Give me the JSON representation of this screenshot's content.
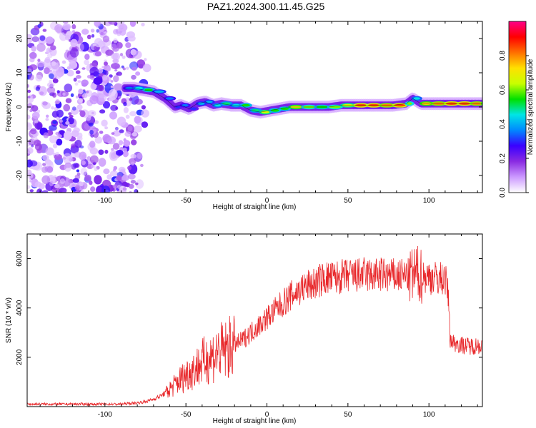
{
  "figure": {
    "title": "PAZ1.2024.300.11.45.G25"
  },
  "chart_data": [
    {
      "type": "heatmap",
      "xlabel": "Height of straight line (km)",
      "ylabel": "Frequency (Hz)",
      "xlim": [
        -148,
        133
      ],
      "ylim": [
        -25,
        25
      ],
      "xticks": [
        -100,
        -50,
        0,
        50,
        100
      ],
      "yticks": [
        -20,
        -10,
        0,
        10,
        20
      ],
      "grid": false,
      "colorbar": {
        "label": "Normalized spectral amplitude",
        "range": [
          0,
          1
        ],
        "ticks": [
          0.0,
          0.2,
          0.4,
          0.6,
          0.8
        ],
        "colormap": [
          "#ffffff",
          "#cc99ff",
          "#8a2be2",
          "#3a00ff",
          "#0088ff",
          "#00e5e5",
          "#00e000",
          "#c8ff00",
          "#ffe000",
          "#ff7000",
          "#ff0000",
          "#ff0088"
        ]
      },
      "noise_region_x": [
        -148,
        -75
      ],
      "ridge": [
        {
          "x": -88,
          "f": 5.5,
          "a": 0.35
        },
        {
          "x": -82,
          "f": 5.5,
          "a": 0.45
        },
        {
          "x": -76,
          "f": 5,
          "a": 0.55
        },
        {
          "x": -70,
          "f": 4.5,
          "a": 0.4
        },
        {
          "x": -63,
          "f": 2.5,
          "a": 0.35
        },
        {
          "x": -57,
          "f": 0,
          "a": 0.3
        },
        {
          "x": -53,
          "f": 0.5,
          "a": 0.35
        },
        {
          "x": -48,
          "f": -0.5,
          "a": 0.3
        },
        {
          "x": -43,
          "f": 1,
          "a": 0.4
        },
        {
          "x": -38,
          "f": 1.5,
          "a": 0.4
        },
        {
          "x": -33,
          "f": 0.5,
          "a": 0.45
        },
        {
          "x": -28,
          "f": 1,
          "a": 0.5
        },
        {
          "x": -22,
          "f": 0.5,
          "a": 0.45
        },
        {
          "x": -16,
          "f": 0.5,
          "a": 0.55
        },
        {
          "x": -10,
          "f": -1,
          "a": 0.5
        },
        {
          "x": -4,
          "f": -1.5,
          "a": 0.65
        },
        {
          "x": 2,
          "f": -1,
          "a": 0.55
        },
        {
          "x": 8,
          "f": -0.5,
          "a": 0.55
        },
        {
          "x": 14,
          "f": 0,
          "a": 0.7
        },
        {
          "x": 22,
          "f": 0,
          "a": 0.6
        },
        {
          "x": 30,
          "f": 0,
          "a": 0.55
        },
        {
          "x": 38,
          "f": 0,
          "a": 0.6
        },
        {
          "x": 46,
          "f": 0.5,
          "a": 0.65
        },
        {
          "x": 54,
          "f": 0.5,
          "a": 0.85
        },
        {
          "x": 62,
          "f": 0.5,
          "a": 0.85
        },
        {
          "x": 70,
          "f": 0.5,
          "a": 0.8
        },
        {
          "x": 78,
          "f": 0.5,
          "a": 0.85
        },
        {
          "x": 86,
          "f": 1,
          "a": 0.6
        },
        {
          "x": 90,
          "f": 2.5,
          "a": 0.45
        },
        {
          "x": 95,
          "f": 1,
          "a": 0.75
        },
        {
          "x": 102,
          "f": 1,
          "a": 0.8
        },
        {
          "x": 110,
          "f": 1,
          "a": 0.85
        },
        {
          "x": 118,
          "f": 1,
          "a": 0.85
        },
        {
          "x": 126,
          "f": 1,
          "a": 0.8
        },
        {
          "x": 133,
          "f": 1,
          "a": 0.75
        }
      ]
    },
    {
      "type": "line",
      "xlabel": "Height of straight line (km)",
      "ylabel": "SNR (10 * v/v)",
      "xlim": [
        -148,
        133
      ],
      "ylim": [
        0,
        7000
      ],
      "xticks": [
        -100,
        -50,
        0,
        50,
        100
      ],
      "yticks": [
        2000,
        4000,
        6000
      ],
      "grid": false,
      "color": "#e8272a",
      "x": [
        -148,
        -130,
        -110,
        -90,
        -80,
        -75,
        -70,
        -65,
        -60,
        -55,
        -50,
        -45,
        -40,
        -35,
        -30,
        -25,
        -20,
        -15,
        -10,
        -5,
        0,
        5,
        10,
        15,
        20,
        25,
        30,
        35,
        40,
        45,
        50,
        55,
        60,
        65,
        70,
        75,
        80,
        85,
        90,
        92,
        95,
        100,
        105,
        110,
        112,
        113,
        115,
        120,
        125,
        133
      ],
      "values": [
        100,
        100,
        100,
        100,
        150,
        200,
        300,
        450,
        700,
        1000,
        1300,
        1500,
        1800,
        2000,
        2200,
        2300,
        2500,
        2700,
        3000,
        3300,
        3600,
        3900,
        4200,
        4500,
        4700,
        4900,
        5000,
        5200,
        5200,
        5250,
        5300,
        5300,
        5350,
        5300,
        5350,
        5300,
        5300,
        5300,
        5300,
        5400,
        5300,
        5250,
        5200,
        5200,
        4500,
        2800,
        2600,
        2500,
        2450,
        2500
      ]
    }
  ]
}
